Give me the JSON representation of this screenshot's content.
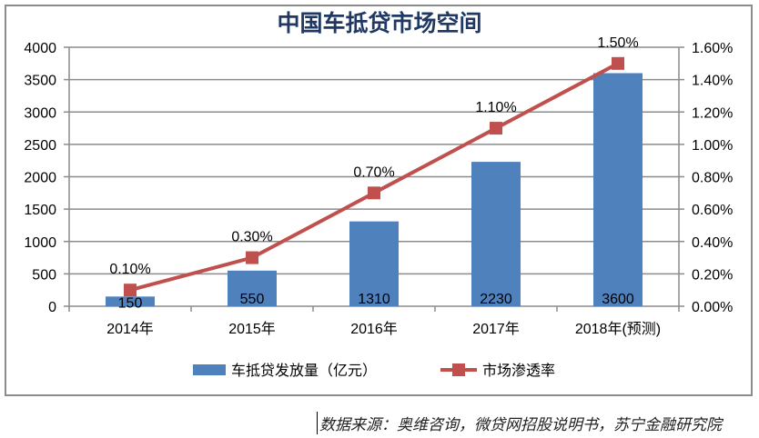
{
  "chart_data": {
    "type": "bar",
    "title": "中国车抵贷市场空间",
    "categories": [
      "2014年",
      "2015年",
      "2016年",
      "2017年",
      "2018年(预测)"
    ],
    "series": [
      {
        "name": "车抵贷发放量（亿元）",
        "type": "bar",
        "axis": "left",
        "values": [
          150,
          550,
          1310,
          2230,
          3600
        ],
        "labels": [
          "150",
          "550",
          "1310",
          "2230",
          "3600"
        ],
        "color": "#4f81bd"
      },
      {
        "name": "市场渗透率",
        "type": "line",
        "axis": "right",
        "values": [
          0.1,
          0.3,
          0.7,
          1.1,
          1.5
        ],
        "labels": [
          "0.10%",
          "0.30%",
          "0.70%",
          "1.10%",
          "1.50%"
        ],
        "color": "#c0504d"
      }
    ],
    "y_left": {
      "range": [
        0,
        4000
      ],
      "ticks": [
        "0",
        "500",
        "1000",
        "1500",
        "2000",
        "2500",
        "3000",
        "3500",
        "4000"
      ]
    },
    "y_right": {
      "range": [
        0,
        1.6
      ],
      "ticks": [
        "0.00%",
        "0.20%",
        "0.40%",
        "0.60%",
        "0.80%",
        "1.00%",
        "1.20%",
        "1.40%",
        "1.60%"
      ]
    },
    "grid": true,
    "legend_placement": "bottom"
  },
  "source_note": "数据来源：奥维咨询，微贷网招股说明书，苏宁金融研究院"
}
